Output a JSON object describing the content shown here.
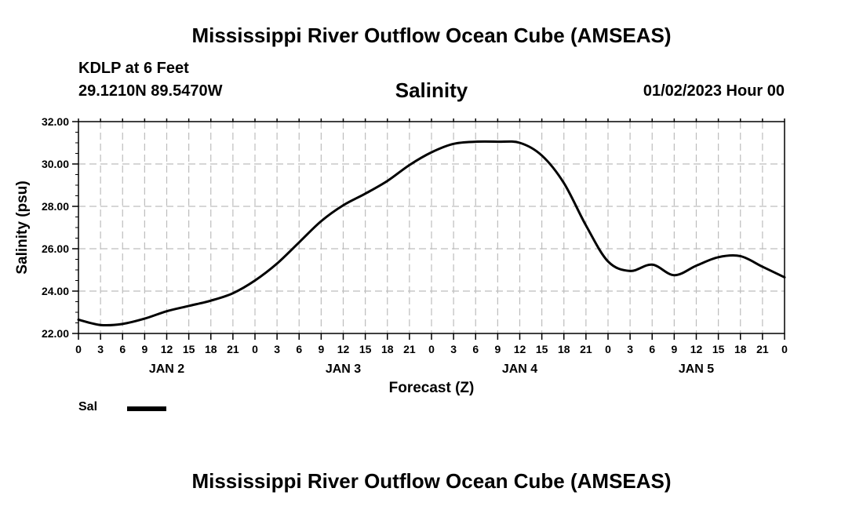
{
  "header": {
    "title": "Mississippi River Outflow Ocean Cube (AMSEAS)",
    "station": "KDLP at 6 Feet",
    "coords": "29.1210N  89.5470W",
    "subtitle": "Salinity",
    "datetime": "01/02/2023 Hour 00"
  },
  "footer": {
    "title": "Mississippi River Outflow Ocean Cube (AMSEAS)"
  },
  "legend": {
    "label": "Sal"
  },
  "chart_data": {
    "type": "line",
    "title": "Salinity",
    "xlabel": "Forecast (Z)",
    "ylabel": "Salinity (psu)",
    "x_unit": "hours since 01/02/2023 00Z",
    "xlim": [
      0,
      96
    ],
    "ylim": [
      22,
      32
    ],
    "yticks": [
      "22.00",
      "24.00",
      "26.00",
      "28.00",
      "30.00",
      "32.00"
    ],
    "xtick_labels": [
      "0",
      "3",
      "6",
      "9",
      "12",
      "15",
      "18",
      "21",
      "0",
      "3",
      "6",
      "9",
      "12",
      "15",
      "18",
      "21",
      "0",
      "3",
      "6",
      "9",
      "12",
      "15",
      "18",
      "21",
      "0",
      "3",
      "6",
      "9",
      "12",
      "15",
      "18",
      "21",
      "0"
    ],
    "day_labels": [
      "JAN 2",
      "JAN 3",
      "JAN 4",
      "JAN 5"
    ],
    "grid": true,
    "series": [
      {
        "name": "Sal",
        "color": "#000000",
        "x": [
          0,
          3,
          6,
          9,
          12,
          15,
          18,
          21,
          24,
          27,
          30,
          33,
          36,
          39,
          42,
          45,
          48,
          51,
          54,
          57,
          60,
          63,
          66,
          69,
          72,
          75,
          78,
          81,
          84,
          87,
          90,
          93,
          96
        ],
        "values": [
          22.65,
          22.4,
          22.45,
          22.7,
          23.05,
          23.3,
          23.55,
          23.9,
          24.5,
          25.3,
          26.3,
          27.3,
          28.05,
          28.6,
          29.2,
          29.95,
          30.55,
          30.95,
          31.05,
          31.05,
          31.0,
          30.4,
          29.1,
          27.1,
          25.4,
          24.95,
          25.25,
          24.75,
          25.2,
          25.6,
          25.65,
          25.15,
          24.65
        ]
      }
    ]
  }
}
